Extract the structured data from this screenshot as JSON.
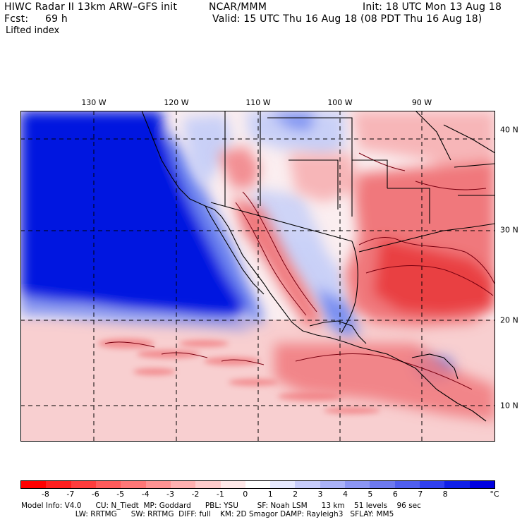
{
  "header": {
    "title": "HIWC Radar II 13km ARW–GFS init",
    "org": "NCAR/MMM",
    "init": "Init: 18 UTC Mon 13 Aug 18",
    "fcst_label": "Fcst:",
    "fcst_value": "69 h",
    "valid": "Valid: 15 UTC Thu 16 Aug 18 (08 PDT Thu 16 Aug 18)",
    "field": "Lifted index"
  },
  "map": {
    "lon_labels": [
      "130 W",
      "120 W",
      "110 W",
      "100 W",
      "90 W"
    ],
    "lat_labels": [
      "40 N",
      "30 N",
      "20 N",
      "10 N"
    ],
    "colors": {
      "strong_positive": "#0018e0",
      "mid_positive": "#6f86f0",
      "weak_positive": "#c9d0f7",
      "neutral": "#fbeef0",
      "weak_negative": "#f7b6b8",
      "mid_negative": "#f0787c",
      "strong_negative": "#e8383d",
      "coast_line": "#000000",
      "contour_line": "#7a0010"
    }
  },
  "colorbar": {
    "ticks": [
      "-8",
      "-7",
      "-6",
      "-5",
      "-4",
      "-3",
      "-2",
      "-1",
      "0",
      "1",
      "2",
      "3",
      "4",
      "5",
      "6",
      "7",
      "8"
    ],
    "unit": "°C",
    "colors": [
      "#ff0000",
      "#ff1f1f",
      "#ff3d3d",
      "#ff5b5b",
      "#ff7777",
      "#ff9393",
      "#ffb0b0",
      "#ffcccc",
      "#ffe8e8",
      "#ffffff",
      "#e6e9ff",
      "#c8cdfb",
      "#aab2f8",
      "#8c96f4",
      "#6e7af0",
      "#505ff0",
      "#3040f0",
      "#1020e8",
      "#0000e0"
    ]
  },
  "footer": {
    "line1": "Model Info: V4.0      CU: N_Tiedt  MP: Goddard      PBL: YSU        SF: Noah LSM      13 km    51 levels    96 sec",
    "line2": "                       LW: RRTMG      SW: RRTMG  DIFF: full    KM: 2D Smagor DAMP: Rayleigh3   SFLAY: MM5"
  }
}
